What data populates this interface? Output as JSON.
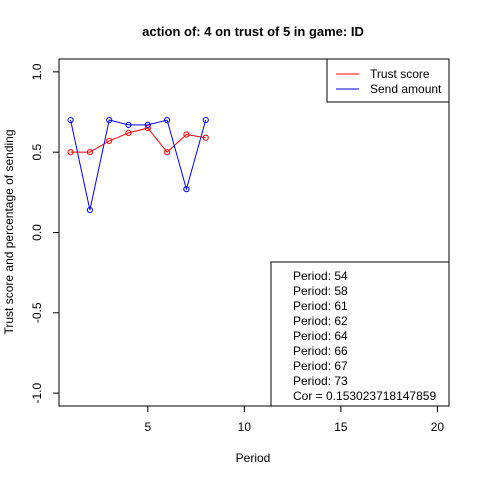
{
  "chart_data": {
    "type": "line",
    "title": "action of:  4  on trust of  5 in game:  ID",
    "xlabel": "Period",
    "ylabel": "Trust score and percentage of sending",
    "xlim": [
      0.4,
      20.6
    ],
    "ylim": [
      -1.08,
      1.08
    ],
    "x_ticks": [
      5,
      10,
      15,
      20
    ],
    "y_ticks": [
      -1.0,
      -0.5,
      0.0,
      0.5,
      1.0
    ],
    "y_tick_labels": [
      "-1.0",
      "-0.5",
      "0.0",
      "0.5",
      "1.0"
    ],
    "x": [
      1,
      2,
      3,
      4,
      5,
      6,
      7,
      8
    ],
    "series": [
      {
        "name": "Trust score",
        "color": "#ff0000",
        "values": [
          0.5,
          0.5,
          0.57,
          0.62,
          0.65,
          0.5,
          0.61,
          0.59
        ]
      },
      {
        "name": "Send amount",
        "color": "#0000ff",
        "values": [
          0.7,
          0.14,
          0.7,
          0.67,
          0.67,
          0.7,
          0.27,
          0.7
        ]
      }
    ],
    "legend_position": "top-right",
    "info_box": {
      "position": "bottom-right",
      "lines": [
        "Period:  54",
        "Period:  58",
        "Period:  61",
        "Period:  62",
        "Period:  64",
        "Period:  66",
        "Period:  67",
        "Period:  73",
        "Cor =  0.153023718147859"
      ]
    },
    "grid": false
  }
}
